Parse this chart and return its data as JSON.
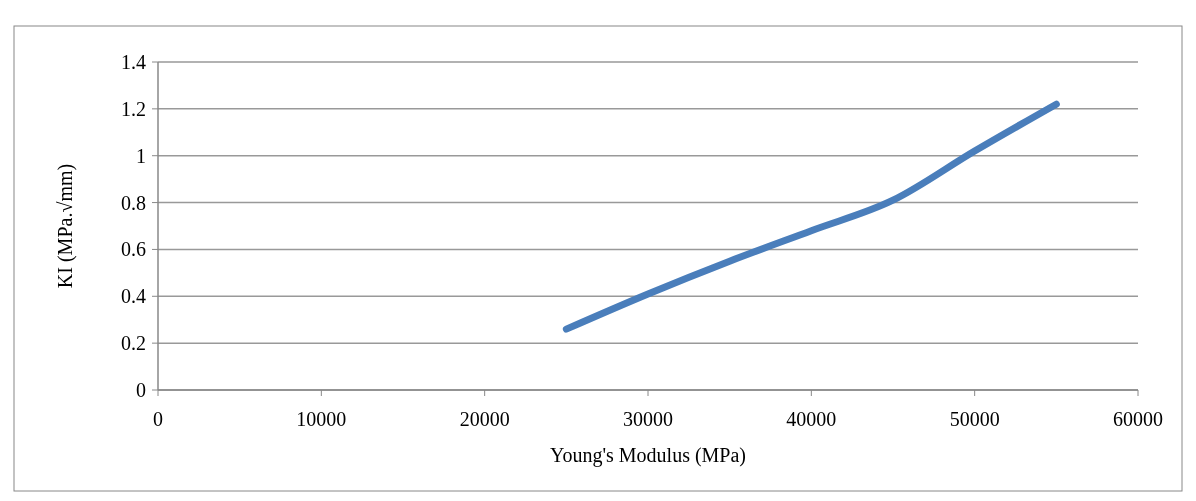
{
  "chart_data": {
    "type": "line",
    "xlabel": "Young's  Modulus (MPa)",
    "ylabel": "KI  (MPa.√mm)",
    "x": [
      25000,
      30000,
      35000,
      40000,
      45000,
      50000,
      55000
    ],
    "series": [
      {
        "color": "#4a7ebb",
        "values": [
          0.26,
          0.41,
          0.55,
          0.68,
          0.81,
          1.02,
          1.22
        ]
      }
    ],
    "xlim": [
      0,
      60000
    ],
    "xticks": [
      0,
      10000,
      20000,
      30000,
      40000,
      50000,
      60000
    ],
    "ylim": [
      0,
      1.4
    ],
    "yticks": [
      0,
      0.2,
      0.4,
      0.6,
      0.8,
      1,
      1.2,
      1.4
    ],
    "grid": "y",
    "marker": "none",
    "line_style": "solid"
  }
}
